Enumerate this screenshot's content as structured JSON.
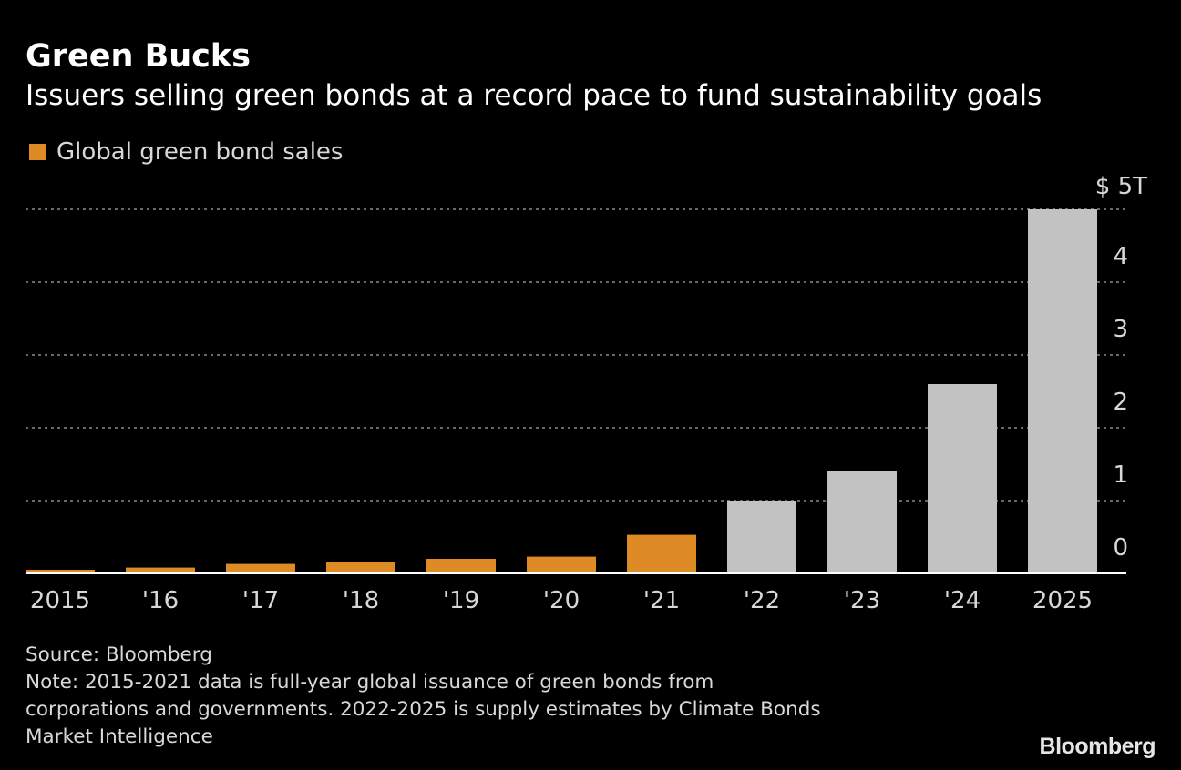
{
  "colors": {
    "background": "#000000",
    "actual": "#DE8B25",
    "estimate": "#C2C2C2",
    "grid": "#8a8a8a",
    "axis": "#ffffff"
  },
  "header": {
    "title": "Green Bucks",
    "subtitle": "Issuers selling green bonds at a record pace to fund sustainability goals"
  },
  "legend": {
    "label": "Global green bond sales",
    "color": "#DE8B25"
  },
  "footer": {
    "source": "Source: Bloomberg",
    "note_line1": "Note: 2015-2021 data is full-year global issuance of green bonds from",
    "note_line2": "corporations and governments. 2022-2025 is supply estimates by Climate Bonds",
    "note_line3": "Market Intelligence",
    "brand": "Bloomberg"
  },
  "chart_data": {
    "type": "bar",
    "categories": [
      "2015",
      "'16",
      "'17",
      "'18",
      "'19",
      "'20",
      "'21",
      "'22",
      "'23",
      "'24",
      "2025"
    ],
    "values": [
      0.05,
      0.08,
      0.13,
      0.16,
      0.2,
      0.23,
      0.53,
      1.0,
      1.4,
      2.6,
      5.0
    ],
    "bar_kind": [
      "actual",
      "actual",
      "actual",
      "actual",
      "actual",
      "actual",
      "actual",
      "estimate",
      "estimate",
      "estimate",
      "estimate"
    ],
    "ylim": [
      0,
      5
    ],
    "yticks": [
      0,
      1,
      2,
      3,
      4,
      5
    ],
    "ytick_labels": [
      "0",
      "1",
      "2",
      "3",
      "4",
      "$ 5T"
    ],
    "grid": true,
    "y_axis_side": "right",
    "legend_position": "top-left"
  }
}
